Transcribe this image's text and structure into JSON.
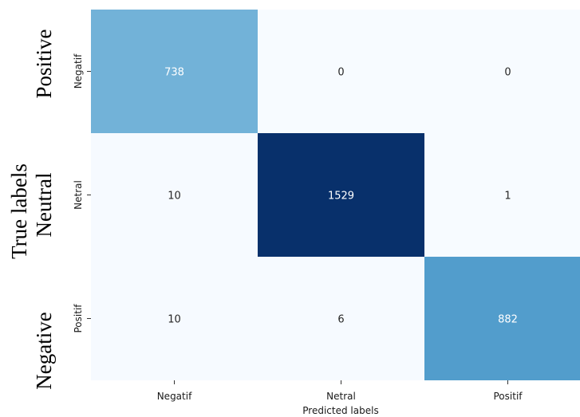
{
  "chart_data": {
    "type": "heatmap",
    "xlabel": "Predicted labels",
    "x_categories": [
      "Negatif",
      "Netral",
      "Positif"
    ],
    "y_categories": [
      "Negatif",
      "Netral",
      "Positif"
    ],
    "values": [
      [
        738,
        0,
        0
      ],
      [
        10,
        1529,
        1
      ],
      [
        10,
        6,
        882
      ]
    ],
    "side_labels": [
      "Positive",
      "Neutral",
      "Negative"
    ],
    "outer_ylabel": "True labels",
    "colormap": "Blues",
    "colors": {
      "low": "#f7fbff",
      "high": "#08306b",
      "text_light": "#ffffff",
      "text_dark": "#262626"
    }
  }
}
